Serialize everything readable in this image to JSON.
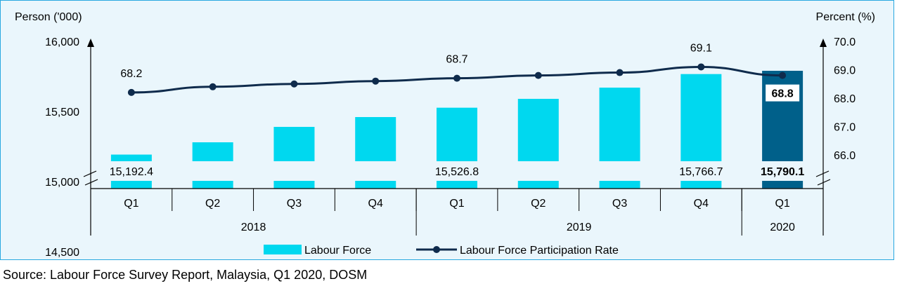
{
  "chart_data": {
    "type": "bar+line",
    "left_axis": {
      "title": "Person ('000)",
      "ticks": [
        14500,
        15000,
        15500,
        16000
      ],
      "tick_labels": [
        "14,500",
        "15,000",
        "15,500",
        "16,000"
      ],
      "range": [
        14350,
        16000
      ]
    },
    "right_axis": {
      "title": "Percent (%)",
      "ticks": [
        66.0,
        67.0,
        68.0,
        69.0,
        70.0
      ],
      "tick_labels": [
        "66.0",
        "67.0",
        "68.0",
        "69.0",
        "70.0"
      ],
      "range": [
        65.5,
        70.0
      ]
    },
    "categories": [
      "Q1",
      "Q2",
      "Q3",
      "Q4",
      "Q1",
      "Q2",
      "Q3",
      "Q4",
      "Q1"
    ],
    "years": [
      {
        "label": "2018",
        "span": 4
      },
      {
        "label": "2019",
        "span": 4
      },
      {
        "label": "2020",
        "span": 1
      }
    ],
    "series": [
      {
        "name": "Labour Force",
        "kind": "bar",
        "values": [
          15192.4,
          15280,
          15390,
          15460,
          15526.8,
          15590,
          15670,
          15766.7,
          15790.1
        ],
        "data_labels": [
          "15,192.4",
          "",
          "",
          "",
          "15,526.8",
          "",
          "",
          "15,766.7",
          "15,790.1"
        ]
      },
      {
        "name": "Labour Force Participation Rate",
        "kind": "line",
        "values": [
          68.2,
          68.4,
          68.5,
          68.6,
          68.7,
          68.8,
          68.9,
          69.1,
          68.8
        ],
        "data_labels": [
          "68.2",
          "",
          "",
          "",
          "68.7",
          "",
          "",
          "69.1",
          "68.8"
        ]
      }
    ],
    "highlight_index": 8
  },
  "colors": {
    "bar": "#00d8ef",
    "bar_highlight": "#00608a",
    "line": "#0f2b4c",
    "panel_border": "#29a8e0",
    "panel_bg": "#eaf6fc"
  },
  "source": "Source: Labour Force Survey Report, Malaysia, Q1 2020, DOSM"
}
